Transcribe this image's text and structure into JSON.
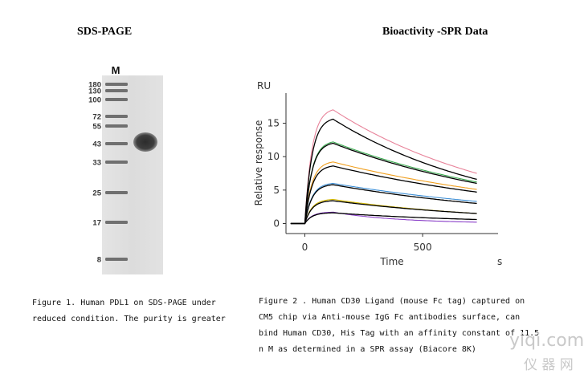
{
  "left_panel": {
    "title": "SDS-PAGE",
    "lane_label": "M",
    "marker_labels": [
      "180",
      "130",
      "100",
      "72",
      "55",
      "43",
      "33",
      "25",
      "17",
      "8"
    ],
    "caption_lines": [
      "Figure 1. Human PDL1 on SDS-PAGE under",
      "reduced condition. The purity is greater"
    ]
  },
  "right_panel": {
    "title": "Bioactivity -SPR Data",
    "caption_lines": [
      "Figure 2 . Human CD30 Ligand (mouse Fc tag) captured on",
      "CM5 chip via Anti-mouse IgG Fc antibodies surface, can",
      "bind Human CD30, His Tag with an affinity constant of 11.5",
      "n M as determined in a SPR assay (Biacore 8K)"
    ]
  },
  "watermark": {
    "line1": "yiqi.com",
    "line2": "仪 器 网"
  },
  "chart_data": {
    "type": "line",
    "title": "",
    "unit_label": "RU",
    "xlabel": "Time",
    "x_unit": "s",
    "ylabel": "Relative response",
    "xlim": [
      -80,
      820
    ],
    "ylim": [
      -1.5,
      19.5
    ],
    "xticks": [
      0,
      500
    ],
    "yticks": [
      0,
      5,
      10,
      15
    ],
    "grid": false,
    "legend": "none",
    "association_start": 0,
    "dissociation_start": 120,
    "end_time": 730,
    "series": [
      {
        "color": "#e8839a",
        "plateau": 17.0,
        "end": 7.5
      },
      {
        "color": "#3aaa4f",
        "plateau": 12.2,
        "end": 6.2
      },
      {
        "color": "#f0a020",
        "plateau": 9.2,
        "end": 5.1
      },
      {
        "color": "#3d8fd6",
        "plateau": 6.0,
        "end": 3.3
      },
      {
        "color": "#d4b800",
        "plateau": 3.6,
        "end": 1.5
      },
      {
        "color": "#8a3fc8",
        "plateau": 1.7,
        "end": 0.2
      }
    ],
    "fit_series": [
      {
        "color": "#000000",
        "plateau": 15.6,
        "end": 6.6
      },
      {
        "color": "#000000",
        "plateau": 12.0,
        "end": 6.0
      },
      {
        "color": "#000000",
        "plateau": 8.6,
        "end": 4.7
      },
      {
        "color": "#000000",
        "plateau": 5.8,
        "end": 3.0
      },
      {
        "color": "#000000",
        "plateau": 3.4,
        "end": 1.5
      },
      {
        "color": "#000000",
        "plateau": 1.6,
        "end": 0.6
      }
    ]
  }
}
